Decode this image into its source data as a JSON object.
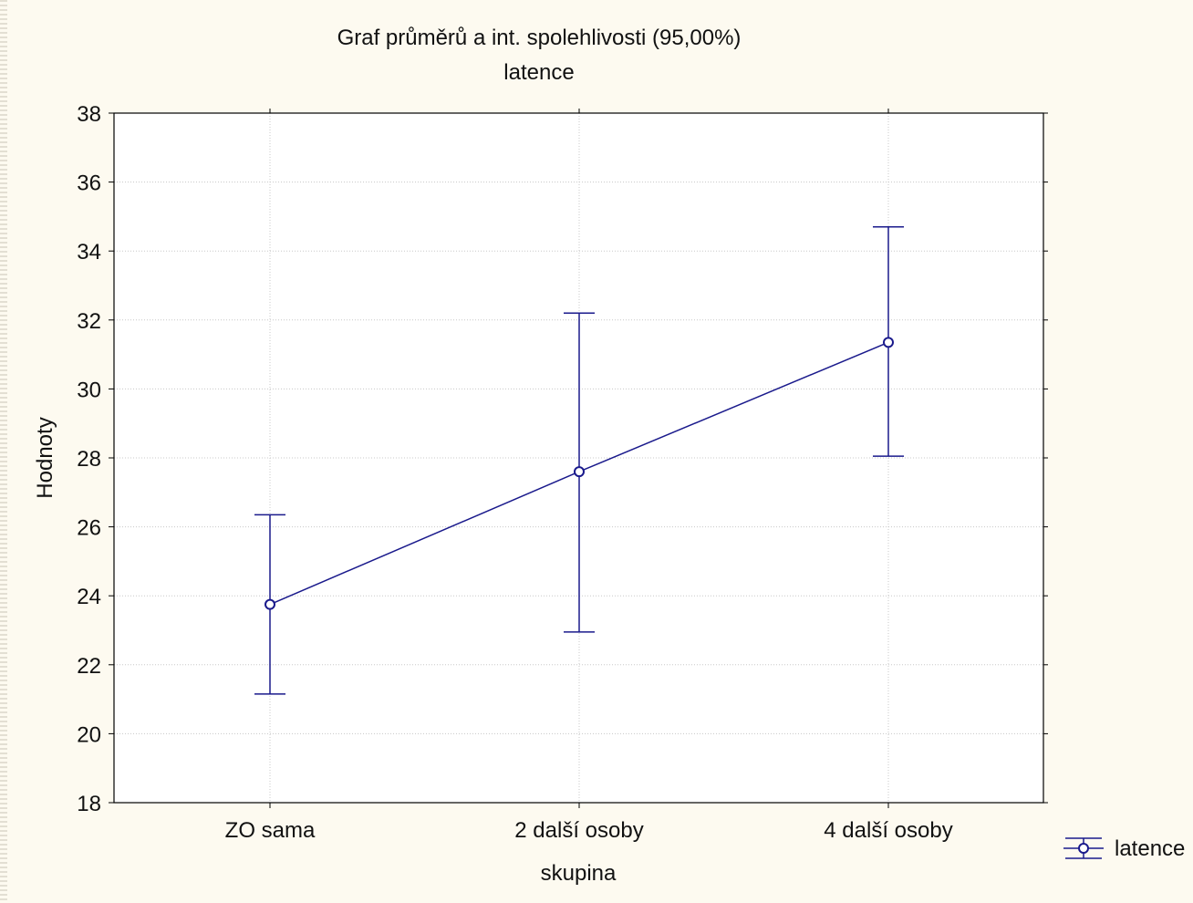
{
  "chart_data": {
    "type": "line",
    "title": "Graf průměrů a int. spolehlivosti (95,00%)",
    "subtitle": "latence",
    "xlabel": "skupina",
    "ylabel": "Hodnoty",
    "categories": [
      "ZO sama",
      "2 další osoby",
      "4 další osoby"
    ],
    "ylim": [
      18,
      38
    ],
    "yticks": [
      18,
      20,
      22,
      24,
      26,
      28,
      30,
      32,
      34,
      36,
      38
    ],
    "ytick_labels": [
      "18",
      "20",
      "22",
      "24",
      "26",
      "28",
      "30",
      "32",
      "34",
      "36",
      "38"
    ],
    "grid": true,
    "legend_position": "bottom-right, outside plot",
    "series": [
      {
        "name": "latence",
        "color": "#1a1a8c",
        "marker": "circle",
        "values": [
          23.75,
          27.6,
          31.35
        ],
        "ci_lower": [
          21.15,
          22.95,
          28.05
        ],
        "ci_upper": [
          26.35,
          32.2,
          34.7
        ]
      }
    ]
  }
}
